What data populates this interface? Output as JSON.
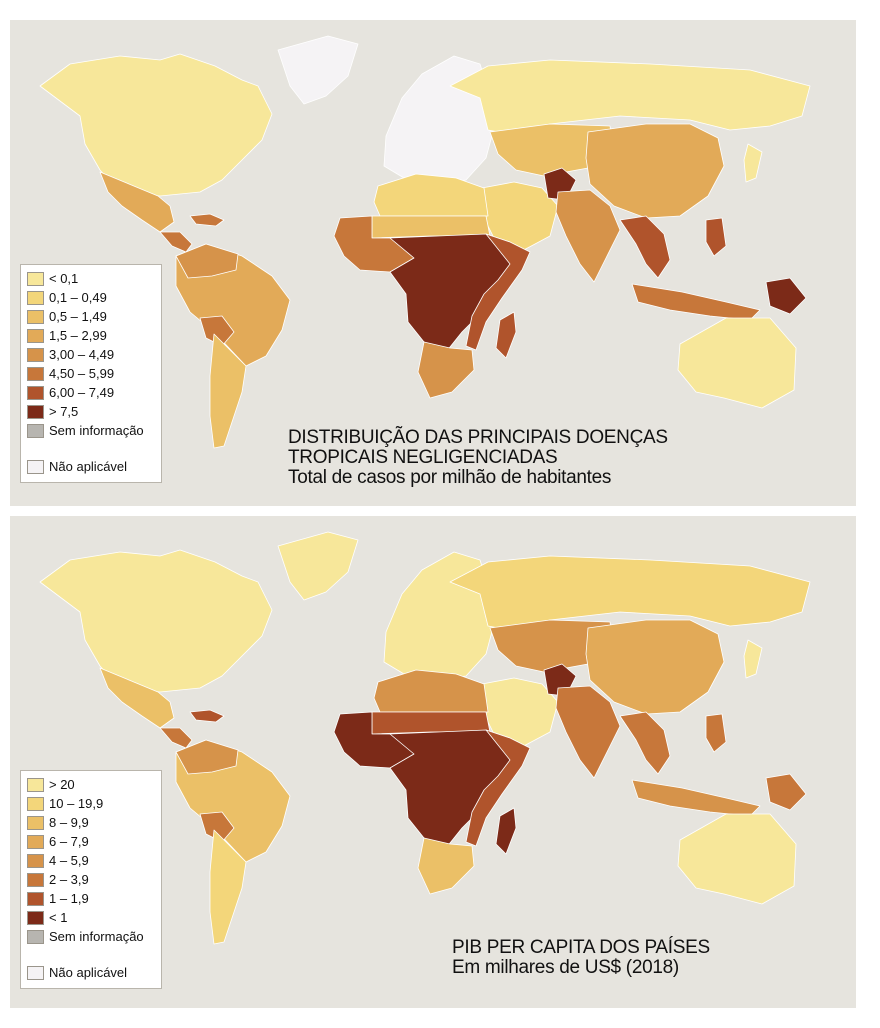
{
  "maps": [
    {
      "title_lines": [
        "DISTRIBUIÇÃO DAS PRINCIPAIS DOENÇAS",
        "TROPICAIS NEGLIGENCIADAS",
        "Total de casos por milhão de habitantes"
      ],
      "legend": [
        {
          "label": "< 0,1",
          "color": "#f7e79a"
        },
        {
          "label": "0,1 – 0,49",
          "color": "#f3d67a"
        },
        {
          "label": "0,5 – 1,49",
          "color": "#ebc067"
        },
        {
          "label": "1,5 – 2,99",
          "color": "#e2aa58"
        },
        {
          "label": "3,00 – 4,49",
          "color": "#d6934a"
        },
        {
          "label": "4,50 – 5,99",
          "color": "#c7773a"
        },
        {
          "label": "6,00 – 7,49",
          "color": "#b0542c"
        },
        {
          "label": "> 7,5",
          "color": "#7c2a18"
        },
        {
          "label": "Sem informação",
          "color": "#b7b5b0"
        },
        {
          "label": "Não aplicável",
          "color": "#f5f3f5"
        }
      ],
      "regions": {
        "north_america": "#f7e79a",
        "greenland": "#f5f3f5",
        "mexico": "#e2aa58",
        "central_america": "#c7773a",
        "caribbean": "#c7773a",
        "south_america": "#e2aa58",
        "south_america_north": "#d6934a",
        "bolivia": "#c7773a",
        "southern_cone": "#ebc067",
        "europe": "#f5f3f5",
        "russia": "#f7e79a",
        "north_africa": "#f3d67a",
        "sahel": "#ebc067",
        "west_africa": "#c7773a",
        "central_africa": "#7c2a18",
        "east_africa": "#b0542c",
        "southern_africa": "#d6934a",
        "madagascar": "#b0542c",
        "middle_east": "#f3d67a",
        "afghanistan": "#7c2a18",
        "central_asia": "#ebc067",
        "south_asia": "#d6934a",
        "china": "#e2aa58",
        "southeast_asia": "#b0542c",
        "indonesia": "#c7773a",
        "philippines": "#b0542c",
        "new_guinea": "#7c2a18",
        "japan": "#f7e79a",
        "australia": "#f7e79a"
      }
    },
    {
      "title_lines": [
        "PIB PER CAPITA DOS PAÍSES",
        "Em milhares de US$ (2018)"
      ],
      "legend": [
        {
          "label": "> 20",
          "color": "#f7e79a"
        },
        {
          "label": "10 – 19,9",
          "color": "#f3d67a"
        },
        {
          "label": "8 – 9,9",
          "color": "#ebc067"
        },
        {
          "label": "6 – 7,9",
          "color": "#e2aa58"
        },
        {
          "label": "4 – 5,9",
          "color": "#d6934a"
        },
        {
          "label": "2 – 3,9",
          "color": "#c7773a"
        },
        {
          "label": "1 – 1,9",
          "color": "#b0542c"
        },
        {
          "label": "< 1",
          "color": "#7c2a18"
        },
        {
          "label": "Sem informação",
          "color": "#b7b5b0"
        },
        {
          "label": "Não aplicável",
          "color": "#f5f3f5"
        }
      ],
      "regions": {
        "north_america": "#f7e79a",
        "greenland": "#f7e79a",
        "mexico": "#ebc067",
        "central_america": "#c7773a",
        "caribbean": "#b0542c",
        "south_america": "#ebc067",
        "south_america_north": "#d6934a",
        "bolivia": "#c7773a",
        "southern_cone": "#f3d67a",
        "europe": "#f7e79a",
        "russia": "#f3d67a",
        "north_africa": "#d6934a",
        "sahel": "#b0542c",
        "west_africa": "#7c2a18",
        "central_africa": "#7c2a18",
        "east_africa": "#b0542c",
        "southern_africa": "#ebc067",
        "madagascar": "#7c2a18",
        "middle_east": "#f7e79a",
        "afghanistan": "#7c2a18",
        "central_asia": "#d6934a",
        "south_asia": "#c7773a",
        "china": "#e2aa58",
        "southeast_asia": "#c7773a",
        "indonesia": "#d6934a",
        "philippines": "#c7773a",
        "new_guinea": "#c7773a",
        "japan": "#f7e79a",
        "australia": "#f7e79a"
      }
    }
  ]
}
